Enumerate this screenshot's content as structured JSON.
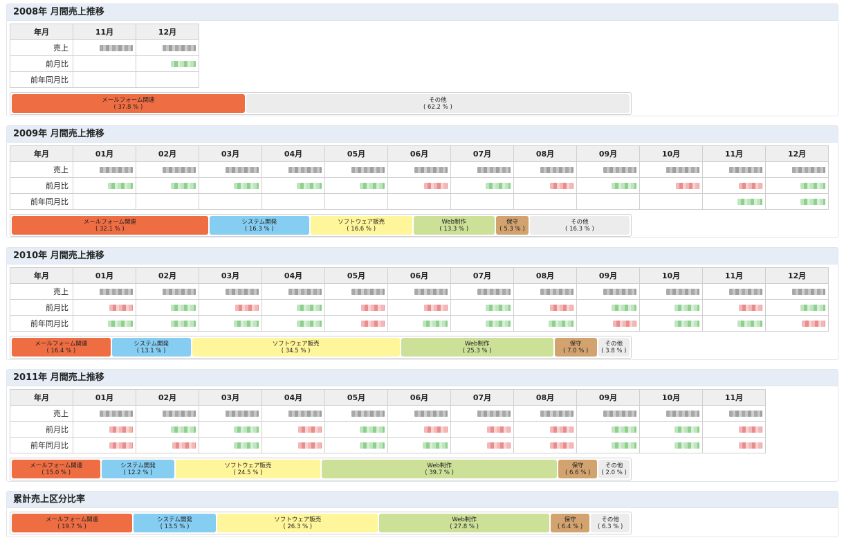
{
  "row_labels": [
    "年月",
    "売上",
    "前月比",
    "前年同月比"
  ],
  "sections": [
    {
      "title": "2008年 月間売上推移",
      "months": [
        "11月",
        "12月"
      ],
      "cells": {
        "sales": [
          "g",
          "g"
        ],
        "mom": [
          "",
          "green"
        ],
        "yoy": [
          "",
          ""
        ]
      },
      "breakdown": [
        {
          "label": "メールフォーム関連",
          "pct": "( 37.8 % )",
          "share": 37.8,
          "kind": "mail"
        },
        {
          "label": "その他",
          "pct": "( 62.2 % )",
          "share": 62.2,
          "kind": "other"
        }
      ]
    },
    {
      "title": "2009年 月間売上推移",
      "months": [
        "01月",
        "02月",
        "03月",
        "04月",
        "05月",
        "06月",
        "07月",
        "08月",
        "09月",
        "10月",
        "11月",
        "12月"
      ],
      "cells": {
        "sales": [
          "g",
          "g",
          "g",
          "g",
          "g",
          "g",
          "g",
          "g",
          "g",
          "g",
          "g",
          "g"
        ],
        "mom": [
          "green",
          "green",
          "green",
          "green",
          "green",
          "red",
          "green",
          "red",
          "green",
          "red",
          "red",
          "green"
        ],
        "yoy": [
          "",
          "",
          "",
          "",
          "",
          "",
          "",
          "",
          "",
          "",
          "green",
          "green"
        ]
      },
      "breakdown": [
        {
          "label": "メールフォーム関連",
          "pct": "( 32.1 % )",
          "share": 32.1,
          "kind": "mail"
        },
        {
          "label": "システム開発",
          "pct": "( 16.3 % )",
          "share": 16.3,
          "kind": "sys"
        },
        {
          "label": "ソフトウェア販売",
          "pct": "( 16.6 % )",
          "share": 16.6,
          "kind": "soft"
        },
        {
          "label": "Web制作",
          "pct": "( 13.3 % )",
          "share": 13.3,
          "kind": "web"
        },
        {
          "label": "保守",
          "pct": "( 5.3 % )",
          "share": 5.3,
          "kind": "hosh"
        },
        {
          "label": "その他",
          "pct": "( 16.3 % )",
          "share": 16.3,
          "kind": "other"
        }
      ]
    },
    {
      "title": "2010年 月間売上推移",
      "months": [
        "01月",
        "02月",
        "03月",
        "04月",
        "05月",
        "06月",
        "07月",
        "08月",
        "09月",
        "10月",
        "11月",
        "12月"
      ],
      "cells": {
        "sales": [
          "g",
          "g",
          "g",
          "g",
          "g",
          "g",
          "g",
          "g",
          "g",
          "g",
          "g",
          "g"
        ],
        "mom": [
          "red",
          "green",
          "red",
          "green",
          "red",
          "red",
          "green",
          "red",
          "green",
          "green",
          "red",
          "green"
        ],
        "yoy": [
          "green",
          "green",
          "green",
          "green",
          "red",
          "green",
          "green",
          "green",
          "red",
          "green",
          "green",
          "red"
        ]
      },
      "breakdown": [
        {
          "label": "メールフォーム関連",
          "pct": "( 16.4 % )",
          "share": 16.4,
          "kind": "mail"
        },
        {
          "label": "システム開発",
          "pct": "( 13.1 % )",
          "share": 13.1,
          "kind": "sys"
        },
        {
          "label": "ソフトウェア販売",
          "pct": "( 34.5 % )",
          "share": 34.5,
          "kind": "soft"
        },
        {
          "label": "Web制作",
          "pct": "( 25.3 % )",
          "share": 25.3,
          "kind": "web"
        },
        {
          "label": "保守",
          "pct": "( 7.0 % )",
          "share": 7.0,
          "kind": "hosh"
        },
        {
          "label": "その他",
          "pct": "( 3.8 % )",
          "share": 3.8,
          "kind": "other"
        }
      ]
    },
    {
      "title": "2011年 月間売上推移",
      "months": [
        "01月",
        "02月",
        "03月",
        "04月",
        "05月",
        "06月",
        "07月",
        "08月",
        "09月",
        "10月",
        "11月"
      ],
      "cells": {
        "sales": [
          "g",
          "g",
          "g",
          "g",
          "g",
          "g",
          "g",
          "g",
          "g",
          "g",
          "g"
        ],
        "mom": [
          "red",
          "green",
          "green",
          "red",
          "green",
          "red",
          "red",
          "red",
          "green",
          "green",
          "red"
        ],
        "yoy": [
          "red",
          "red",
          "green",
          "red",
          "green",
          "green",
          "red",
          "red",
          "green",
          "green",
          "red"
        ]
      },
      "breakdown": [
        {
          "label": "メールフォーム関連",
          "pct": "( 15.0 % )",
          "share": 15.0,
          "kind": "mail"
        },
        {
          "label": "システム開発",
          "pct": "( 12.2 % )",
          "share": 12.2,
          "kind": "sys"
        },
        {
          "label": "ソフトウェア販売",
          "pct": "( 24.5 % )",
          "share": 24.5,
          "kind": "soft"
        },
        {
          "label": "Web制作",
          "pct": "( 39.7 % )",
          "share": 39.7,
          "kind": "web"
        },
        {
          "label": "保守",
          "pct": "( 6.6 % )",
          "share": 6.6,
          "kind": "hosh"
        },
        {
          "label": "その他",
          "pct": "( 2.0 % )",
          "share": 2.0,
          "kind": "other"
        }
      ]
    }
  ],
  "cumulative": {
    "title": "累計売上区分比率",
    "breakdown": [
      {
        "label": "メールフォーム関連",
        "pct": "( 19.7 % )",
        "share": 19.7,
        "kind": "mail"
      },
      {
        "label": "システム開発",
        "pct": "( 13.5 % )",
        "share": 13.5,
        "kind": "sys"
      },
      {
        "label": "ソフトウェア販売",
        "pct": "( 26.3 % )",
        "share": 26.3,
        "kind": "soft"
      },
      {
        "label": "Web制作",
        "pct": "( 27.8 % )",
        "share": 27.8,
        "kind": "web"
      },
      {
        "label": "保守",
        "pct": "( 6.4 % )",
        "share": 6.4,
        "kind": "hosh"
      },
      {
        "label": "その他",
        "pct": "( 6.3 % )",
        "share": 6.3,
        "kind": "other"
      }
    ]
  }
}
